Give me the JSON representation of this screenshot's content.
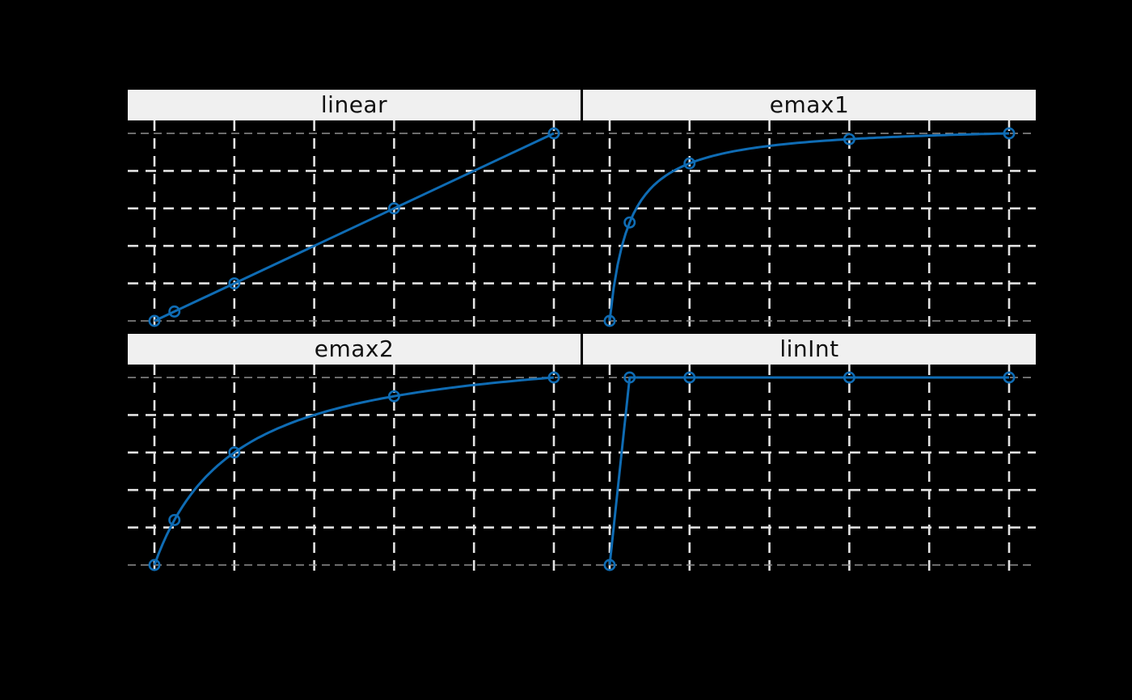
{
  "chart_data": {
    "type": "line",
    "layout": "2x2-trellis",
    "title": "",
    "xlabel": "",
    "ylabel": "",
    "legend": "none",
    "grid": "dashed",
    "doses": [
      0,
      0.05,
      0.2,
      0.6,
      1
    ],
    "xlim": [
      0,
      1
    ],
    "ylim": [
      0,
      1
    ],
    "x_gridlines": [
      0,
      0.2,
      0.4,
      0.6,
      0.8,
      1.0
    ],
    "y_gridlines": [
      0.2,
      0.4,
      0.6,
      0.8
    ],
    "y_reference_lines": [
      0,
      1
    ],
    "marker": "open-circle",
    "panels": [
      {
        "title": "linear",
        "model": "linear",
        "x": [
          0,
          0.05,
          0.2,
          0.6,
          1
        ],
        "effects": [
          0,
          0.05,
          0.2,
          0.6,
          1
        ]
      },
      {
        "title": "emax1",
        "model": "emax",
        "ed50": 0.05,
        "x": [
          0,
          0.05,
          0.2,
          0.6,
          1
        ],
        "effects": [
          0,
          0.525,
          0.84,
          0.969,
          1
        ]
      },
      {
        "title": "emax2",
        "model": "emax",
        "ed50": 0.2,
        "x": [
          0,
          0.05,
          0.2,
          0.6,
          1
        ],
        "effects": [
          0,
          0.24,
          0.6,
          0.9,
          1
        ]
      },
      {
        "title": "linInt",
        "model": "linInt",
        "x": [
          0,
          0.05,
          0.2,
          0.6,
          1
        ],
        "effects": [
          0,
          1,
          1,
          1,
          1
        ]
      }
    ],
    "colors": {
      "background": "#000000",
      "panel_background": "#000000",
      "strip_background": "#f0f0f0",
      "strip_text": "#111111",
      "gridline": "#e3e3e3",
      "reference_line": "#8f8f8f",
      "series_line": "#0f6cb4"
    }
  }
}
